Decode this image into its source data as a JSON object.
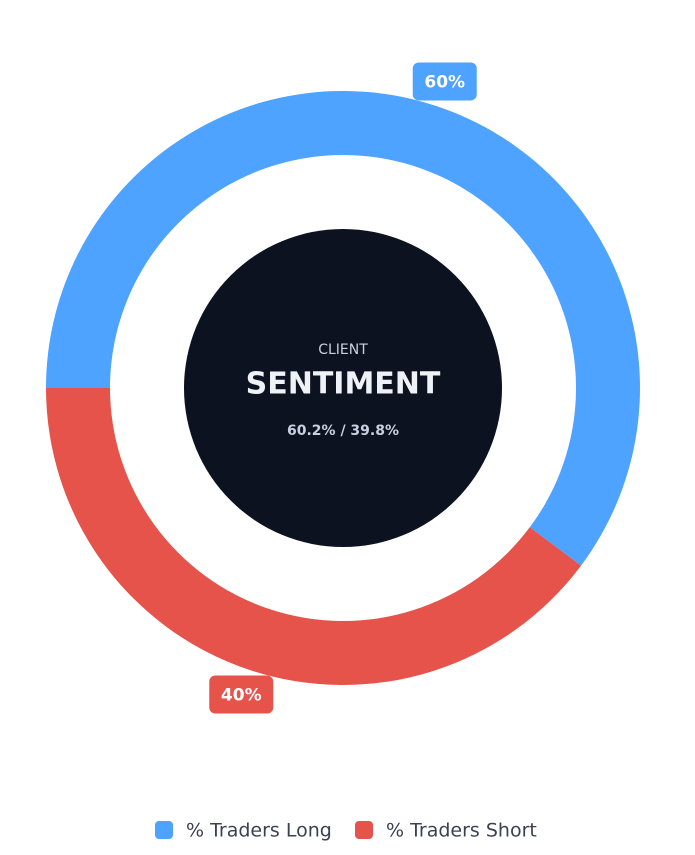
{
  "chart_data": {
    "type": "pie",
    "donut": true,
    "categories": [
      "% Traders Long",
      "% Traders Short"
    ],
    "values": [
      60.2,
      39.8
    ],
    "value_labels": [
      "60%",
      "40%"
    ],
    "colors": [
      "#4da3ff",
      "#e5534b"
    ],
    "annotations": [
      "CLIENT",
      "SENTIMENT",
      "60.2% / 39.8%"
    ],
    "legend": "bottom"
  }
}
